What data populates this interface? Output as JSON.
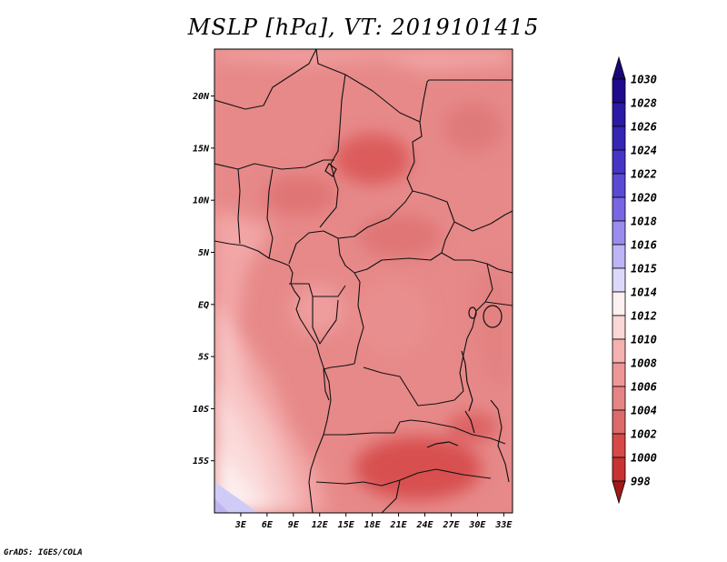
{
  "title": "MSLP [hPa], VT: 2019101415",
  "credit": "GrADS: IGES/COLA",
  "map": {
    "variable": "Mean sea level pressure",
    "units": "hPa",
    "valid_time": "2019101415",
    "lon_range": [
      0,
      34
    ],
    "lat_range": [
      -20,
      24.5
    ],
    "lat_ticks": [
      {
        "value": 20,
        "label": "20N"
      },
      {
        "value": 15,
        "label": "15N"
      },
      {
        "value": 10,
        "label": "10N"
      },
      {
        "value": 5,
        "label": "5N"
      },
      {
        "value": 0,
        "label": "EQ"
      },
      {
        "value": -5,
        "label": "5S"
      },
      {
        "value": -10,
        "label": "10S"
      },
      {
        "value": -15,
        "label": "15S"
      }
    ],
    "lon_ticks": [
      {
        "value": 3,
        "label": "3E"
      },
      {
        "value": 6,
        "label": "6E"
      },
      {
        "value": 9,
        "label": "9E"
      },
      {
        "value": 12,
        "label": "12E"
      },
      {
        "value": 15,
        "label": "15E"
      },
      {
        "value": 18,
        "label": "18E"
      },
      {
        "value": 21,
        "label": "21E"
      },
      {
        "value": 24,
        "label": "24E"
      },
      {
        "value": 27,
        "label": "27E"
      },
      {
        "value": 30,
        "label": "30E"
      },
      {
        "value": 33,
        "label": "33E"
      }
    ]
  },
  "colorbar": {
    "levels": [
      {
        "label": "1030",
        "color": "#1e0a8c"
      },
      {
        "label": "1028",
        "color": "#2a1aa6"
      },
      {
        "label": "1026",
        "color": "#3526b4"
      },
      {
        "label": "1024",
        "color": "#4634c6"
      },
      {
        "label": "1022",
        "color": "#5a4ad6"
      },
      {
        "label": "1020",
        "color": "#7866e2"
      },
      {
        "label": "1018",
        "color": "#9a8cec"
      },
      {
        "label": "1016",
        "color": "#bcb4f4"
      },
      {
        "label": "1015",
        "color": "#dcd8fa"
      },
      {
        "label": "1014",
        "color": "#fdf0f0"
      },
      {
        "label": "1012",
        "color": "#fbd6d6"
      },
      {
        "label": "1010",
        "color": "#f5b0b0"
      },
      {
        "label": "1008",
        "color": "#ee9696"
      },
      {
        "label": "1006",
        "color": "#e48484"
      },
      {
        "label": "1004",
        "color": "#dc6a6a"
      },
      {
        "label": "1002",
        "color": "#d84848"
      },
      {
        "label": "1000",
        "color": "#c83232"
      },
      {
        "label": "998",
        "color": "#b42222"
      }
    ],
    "tip_top_color": "#1a0678",
    "tip_bottom_color": "#a01818"
  }
}
